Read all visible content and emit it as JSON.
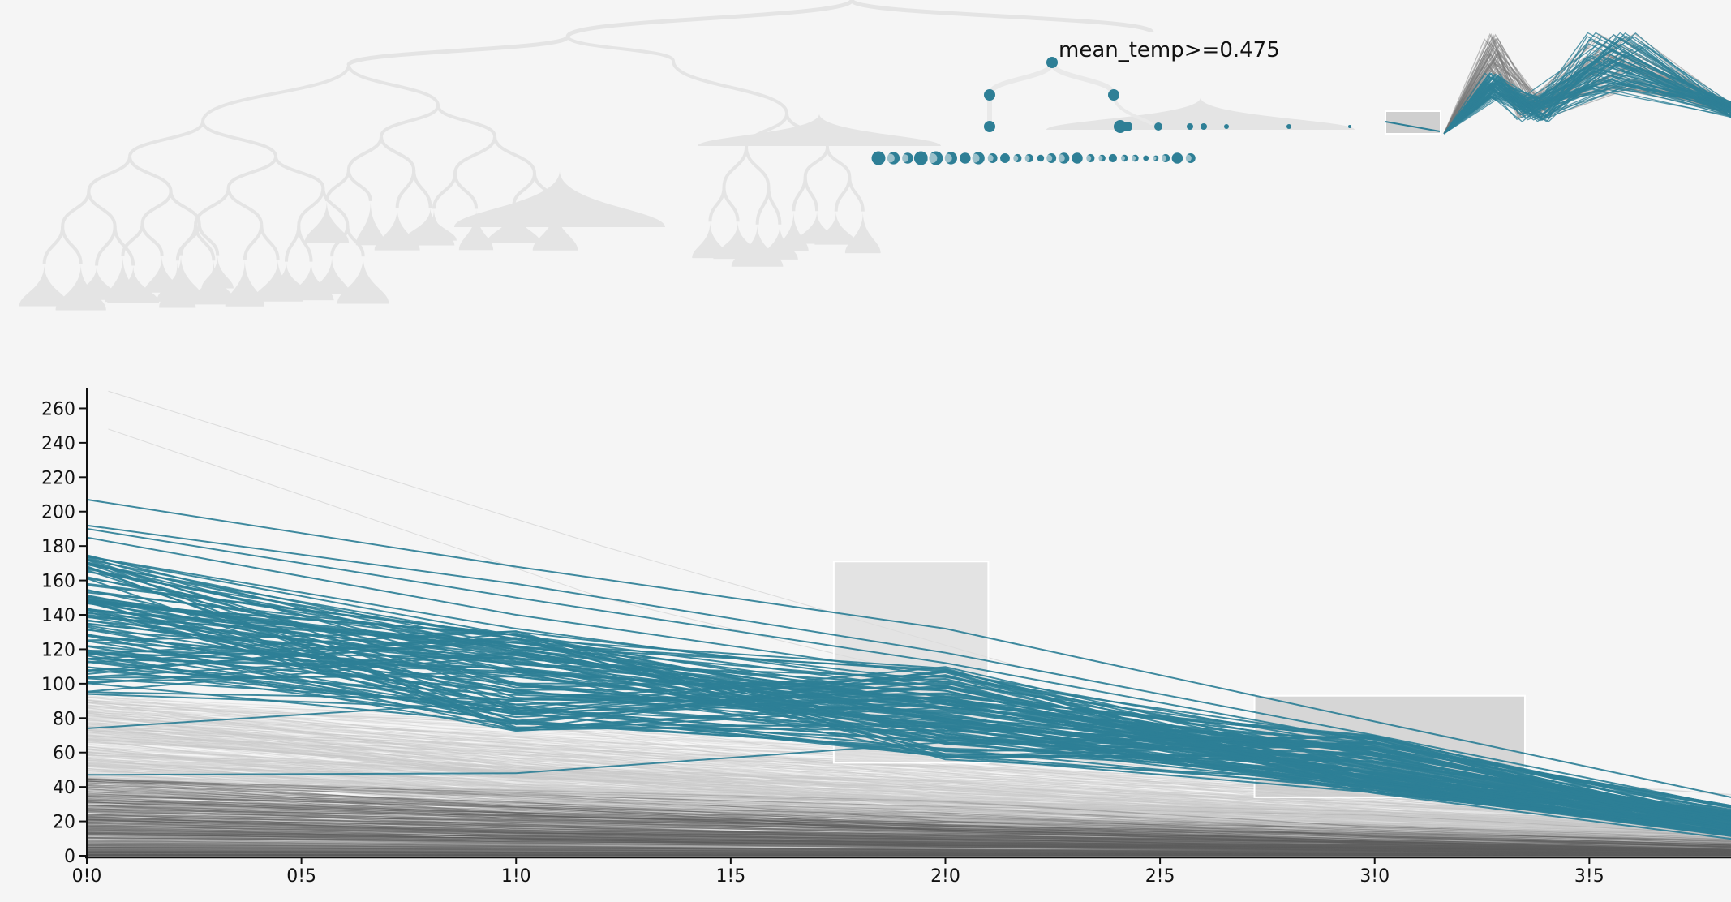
{
  "tree": {
    "selected_node_label": "mean_temp>=0.475",
    "accent_color": "#2e7f96",
    "ghost_color": "#e4e4e4"
  },
  "chart_data": {
    "type": "line",
    "x": [
      0.0,
      1.0,
      2.0,
      3.0,
      4.0
    ],
    "xticks": [
      "0!0",
      "0!5",
      "1!0",
      "1!5",
      "2!0",
      "2!5",
      "3!0",
      "3!5"
    ],
    "xtick_values": [
      0.0,
      0.5,
      1.0,
      1.5,
      2.0,
      2.5,
      3.0,
      3.5
    ],
    "yticks": [
      "0",
      "20",
      "40",
      "60",
      "80",
      "100",
      "120",
      "140",
      "160",
      "180",
      "200",
      "220",
      "240",
      "260"
    ],
    "ytick_values": [
      0,
      20,
      40,
      60,
      80,
      100,
      120,
      140,
      160,
      180,
      200,
      220,
      240,
      260
    ],
    "xlim": [
      0.0,
      3.83
    ],
    "ylim": [
      0,
      272
    ],
    "grid": false,
    "highlight_color": "#2e7f96",
    "context_color": "#6e6e6e",
    "highlighted_series_sample": [
      [
        207,
        168,
        132,
        78,
        25
      ],
      [
        192,
        158,
        118,
        70,
        20
      ],
      [
        190,
        150,
        112,
        66,
        18
      ],
      [
        185,
        140,
        104,
        60,
        16
      ],
      [
        174,
        132,
        98,
        55,
        14
      ],
      [
        165,
        126,
        92,
        52,
        12
      ],
      [
        154,
        122,
        88,
        50,
        11
      ],
      [
        148,
        118,
        85,
        48,
        10
      ],
      [
        140,
        112,
        82,
        46,
        10
      ],
      [
        135,
        108,
        80,
        45,
        9
      ],
      [
        128,
        104,
        76,
        43,
        8
      ],
      [
        122,
        100,
        74,
        42,
        8
      ],
      [
        118,
        96,
        72,
        41,
        7
      ],
      [
        113,
        90,
        70,
        40,
        7
      ],
      [
        108,
        86,
        66,
        39,
        6
      ],
      [
        94,
        85,
        62,
        38,
        6
      ],
      [
        74,
        90,
        68,
        40,
        7
      ],
      [
        47,
        48,
        66,
        42,
        8
      ]
    ],
    "brushes": [
      {
        "x_range": [
          1.74,
          2.1
        ],
        "y_range": [
          54,
          171
        ]
      },
      {
        "x_range": [
          2.72,
          3.35
        ],
        "y_range": [
          34,
          93
        ]
      }
    ]
  }
}
